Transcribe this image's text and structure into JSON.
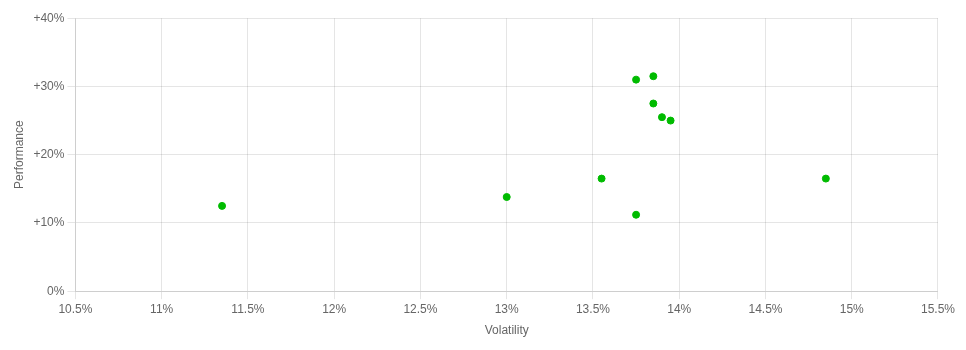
{
  "chart_data": {
    "type": "scatter",
    "xlabel": "Volatility",
    "ylabel": "Performance",
    "color": "#00bb00",
    "x": [
      11.35,
      13.0,
      13.55,
      13.75,
      13.85,
      13.85,
      13.9,
      13.95,
      13.75,
      14.85
    ],
    "values": [
      12.5,
      13.8,
      16.5,
      31.0,
      31.5,
      27.5,
      25.5,
      25.0,
      11.2,
      16.5
    ],
    "xlim": [
      10.5,
      15.5
    ],
    "ylim": [
      0,
      40
    ],
    "xticks": [
      {
        "value": 10.5,
        "label": "10.5%"
      },
      {
        "value": 11.0,
        "label": "11%"
      },
      {
        "value": 11.5,
        "label": "11.5%"
      },
      {
        "value": 12.0,
        "label": "12%"
      },
      {
        "value": 12.5,
        "label": "12.5%"
      },
      {
        "value": 13.0,
        "label": "13%"
      },
      {
        "value": 13.5,
        "label": "13.5%"
      },
      {
        "value": 14.0,
        "label": "14%"
      },
      {
        "value": 14.5,
        "label": "14.5%"
      },
      {
        "value": 15.0,
        "label": "15%"
      },
      {
        "value": 15.5,
        "label": "15.5%"
      }
    ],
    "yticks": [
      {
        "value": 0,
        "label": "0%"
      },
      {
        "value": 10,
        "label": "+10%"
      },
      {
        "value": 20,
        "label": "+20%"
      },
      {
        "value": 30,
        "label": "+30%"
      },
      {
        "value": 40,
        "label": "+40%"
      }
    ],
    "grid": true
  }
}
